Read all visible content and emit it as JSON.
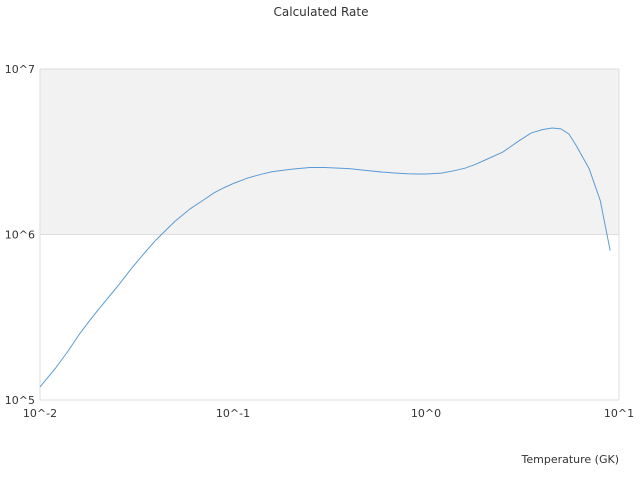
{
  "chart_data": {
    "type": "line",
    "title": "Calculated Rate",
    "xlabel": "Temperature (GK)",
    "ylabel": "",
    "x_scale": "log",
    "y_scale": "log",
    "xlim": [
      0.01,
      10
    ],
    "ylim": [
      100000,
      10000000
    ],
    "x_ticks": [
      {
        "value": 0.01,
        "label": "10^-2"
      },
      {
        "value": 0.1,
        "label": "10^-1"
      },
      {
        "value": 1,
        "label": "10^0"
      },
      {
        "value": 10,
        "label": "10^1"
      }
    ],
    "y_ticks": [
      {
        "value": 100000,
        "label": "10^5"
      },
      {
        "value": 1000000,
        "label": "10^6"
      },
      {
        "value": 10000000,
        "label": "10^7"
      }
    ],
    "shaded_band": {
      "from": 1000000,
      "to": 10000000,
      "color": "#f2f2f2"
    },
    "legend": "none",
    "colors": {
      "line": "#5b9bd5",
      "grid": "#dddddd"
    },
    "series": [
      {
        "x": [
          0.01,
          0.012,
          0.014,
          0.016,
          0.018,
          0.02,
          0.025,
          0.03,
          0.035,
          0.04,
          0.05,
          0.06,
          0.07,
          0.08,
          0.09,
          0.1,
          0.12,
          0.14,
          0.16,
          0.18,
          0.2,
          0.25,
          0.3,
          0.35,
          0.4,
          0.5,
          0.6,
          0.7,
          0.8,
          0.9,
          1.0,
          1.2,
          1.4,
          1.6,
          1.8,
          2.0,
          2.5,
          3.0,
          3.5,
          4.0,
          4.5,
          5.0,
          5.5,
          6.0,
          7.0,
          8.0,
          9.0
        ],
        "y": [
          120000,
          155000,
          198000,
          250000,
          300000,
          350000,
          480000,
          630000,
          780000,
          930000,
          1200000,
          1430000,
          1610000,
          1790000,
          1920000,
          2030000,
          2200000,
          2310000,
          2400000,
          2440000,
          2480000,
          2540000,
          2540000,
          2520000,
          2500000,
          2430000,
          2380000,
          2350000,
          2330000,
          2320000,
          2320000,
          2350000,
          2430000,
          2520000,
          2650000,
          2800000,
          3150000,
          3650000,
          4100000,
          4300000,
          4400000,
          4350000,
          4050000,
          3450000,
          2500000,
          1600000,
          800000
        ]
      }
    ]
  }
}
